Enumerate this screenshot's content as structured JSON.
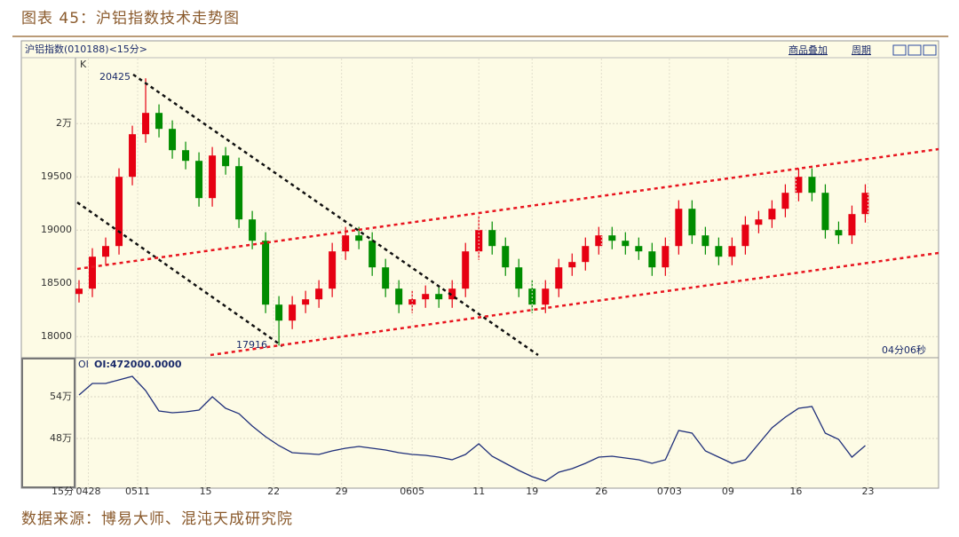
{
  "header": {
    "title": "图表 45：沪铝指数技术走势图"
  },
  "toolbar": {
    "instrument": "沪铝指数(010188)<15分>",
    "overlay": "商品叠加",
    "period": "周期",
    "countdown": "04分06秒"
  },
  "chart_data": [
    {
      "type": "candlestick",
      "label": "K",
      "open": [
        18400,
        18450,
        18750,
        18850,
        19500,
        19900,
        20100,
        19950,
        19750,
        19650,
        19300,
        19700,
        19600,
        19100,
        18900,
        18300,
        18150,
        18300,
        18350,
        18450,
        18800,
        18950,
        18900,
        18650,
        18450,
        18300,
        18350,
        18400,
        18350,
        18450,
        18800,
        19000,
        18850,
        18650,
        18450,
        18300,
        18450,
        18650,
        18700,
        18850,
        18950,
        18900,
        18850,
        18800,
        18650,
        18850,
        19200,
        18950,
        18850,
        18750,
        18850,
        19050,
        19100,
        19200,
        19350,
        19500,
        19350,
        19000,
        18950,
        19150
      ],
      "high": [
        18530,
        18830,
        18930,
        19580,
        19980,
        20425,
        20180,
        20030,
        19830,
        19730,
        19780,
        19780,
        19680,
        19180,
        18980,
        18380,
        18380,
        18430,
        18530,
        18880,
        19030,
        19030,
        18980,
        18730,
        18530,
        18430,
        18480,
        18480,
        18530,
        18880,
        19130,
        19080,
        18930,
        18730,
        18530,
        18530,
        18730,
        18780,
        18930,
        19030,
        19030,
        18980,
        18930,
        18880,
        18930,
        19280,
        19280,
        19030,
        18930,
        18930,
        19130,
        19180,
        19280,
        19430,
        19580,
        19580,
        19430,
        19080,
        19230,
        19430
      ],
      "low": [
        18320,
        18370,
        18670,
        18770,
        19420,
        19820,
        19870,
        19670,
        19570,
        19220,
        19220,
        19520,
        19020,
        18820,
        18220,
        17916,
        18070,
        18220,
        18270,
        18370,
        18720,
        18820,
        18570,
        18370,
        18220,
        18220,
        18270,
        18270,
        18270,
        18370,
        18720,
        18770,
        18570,
        18370,
        18220,
        18220,
        18370,
        18570,
        18620,
        18770,
        18820,
        18770,
        18720,
        18570,
        18570,
        18770,
        18870,
        18770,
        18670,
        18670,
        18770,
        18970,
        19020,
        19120,
        19270,
        19270,
        18920,
        18870,
        18870,
        19070
      ],
      "close": [
        18450,
        18750,
        18850,
        19500,
        19900,
        20100,
        19950,
        19750,
        19650,
        19300,
        19700,
        19600,
        19100,
        18900,
        18300,
        18150,
        18300,
        18350,
        18450,
        18800,
        18950,
        18900,
        18650,
        18450,
        18300,
        18350,
        18400,
        18350,
        18450,
        18800,
        19000,
        18850,
        18650,
        18450,
        18300,
        18450,
        18650,
        18700,
        18850,
        18950,
        18900,
        18850,
        18800,
        18650,
        18850,
        19200,
        18950,
        18850,
        18750,
        18850,
        19050,
        19100,
        19200,
        19350,
        19500,
        19350,
        19000,
        18950,
        19150,
        19350
      ],
      "up_color": "#e60012",
      "down_color": "#008c00",
      "xlim": [
        -0.2,
        64.5
      ],
      "ylim": [
        17810,
        20610
      ],
      "yticks": [
        18000,
        18500,
        19000,
        19500,
        {
          "value": 20000,
          "label": "2万"
        }
      ],
      "annotations": [
        "20425",
        "17916"
      ],
      "grid": true
    },
    {
      "type": "line",
      "title": "OI",
      "subtitle": "OI:472000.0000",
      "color": "#1f2f7a",
      "values": [
        542600,
        559100,
        559100,
        564300,
        569400,
        548900,
        519600,
        517000,
        518300,
        520900,
        540000,
        523400,
        515700,
        497900,
        482600,
        469800,
        459600,
        458300,
        457000,
        462100,
        466000,
        468500,
        466000,
        463400,
        459600,
        457000,
        455700,
        453200,
        449400,
        457000,
        472300,
        454500,
        444300,
        434000,
        425100,
        418700,
        431500,
        436600,
        444300,
        453200,
        454500,
        451900,
        449400,
        444300,
        449400,
        491500,
        487700,
        462100,
        453200,
        444300,
        449400,
        472300,
        495300,
        510600,
        523400,
        526000,
        487700,
        478700,
        453200,
        469800
      ],
      "xlim": [
        -0.2,
        64.5
      ],
      "xlabel": "15分",
      "xticks": [
        {
          "value": 0.7,
          "label": "0428"
        },
        {
          "value": 4.4,
          "label": "0511"
        },
        {
          "value": 9.5,
          "label": "15"
        },
        {
          "value": 14.6,
          "label": "22"
        },
        {
          "value": 19.7,
          "label": "29"
        },
        {
          "value": 25.0,
          "label": "0605"
        },
        {
          "value": 30.0,
          "label": "11"
        },
        {
          "value": 34.0,
          "label": "19"
        },
        {
          "value": 39.2,
          "label": "26"
        },
        {
          "value": 44.3,
          "label": "0703"
        },
        {
          "value": 48.7,
          "label": "09"
        },
        {
          "value": 53.8,
          "label": "16"
        },
        {
          "value": 59.2,
          "label": "23"
        }
      ],
      "ylim": [
        408500,
        594900
      ],
      "yticks": [
        {
          "value": 480000,
          "label": "48万"
        },
        {
          "value": 540000,
          "label": "54万"
        }
      ],
      "grid": true
    }
  ],
  "footer": {
    "source": "数据来源：博易大师、混沌天成研究院"
  }
}
